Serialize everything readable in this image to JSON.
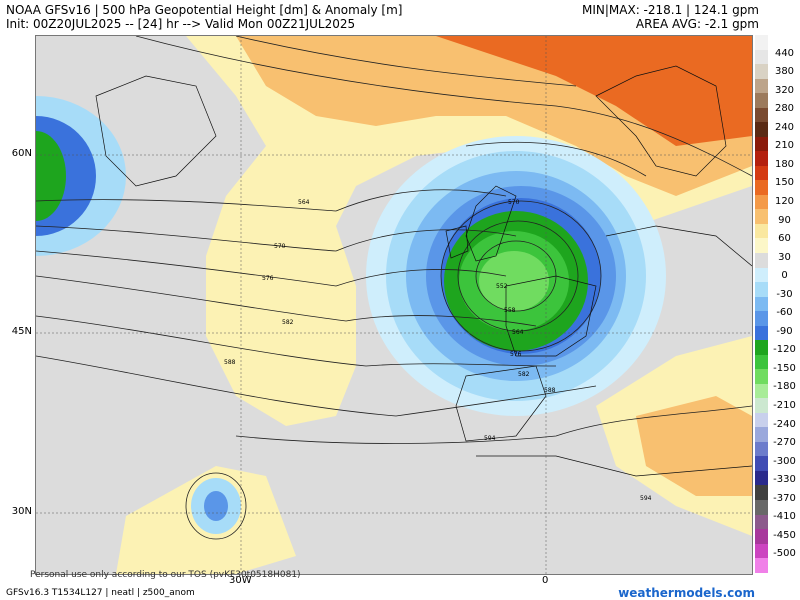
{
  "header": {
    "line1": "NOAA GFSv16 | 500 hPa Geopotential Height [dm] & Anomaly [m]",
    "line2": "Init: 00Z20JUL2025 -- [24] hr --> Valid Mon 00Z21JUL2025",
    "minmax": "MIN|MAX: -218.1 | 124.1 gpm",
    "area_avg": "AREA AVG: -2.1 gpm"
  },
  "axes": {
    "lat_labels": [
      "60N",
      "45N",
      "30N"
    ],
    "lon_labels": [
      "30W",
      "0"
    ]
  },
  "colorbar": {
    "labels": [
      "440",
      "380",
      "320",
      "280",
      "240",
      "210",
      "180",
      "150",
      "120",
      "90",
      "60",
      "30",
      "0",
      "-30",
      "-60",
      "-90",
      "-120",
      "-150",
      "-180",
      "-210",
      "-240",
      "-270",
      "-300",
      "-330",
      "-370",
      "-410",
      "-450",
      "-500"
    ],
    "colors": [
      "#f2f2f2",
      "#e6e6e6",
      "#d9d2c4",
      "#bda48a",
      "#9c7a5c",
      "#7a4a30",
      "#5a2a14",
      "#8a1a0a",
      "#b4200e",
      "#d43a12",
      "#ea6a22",
      "#f49a48",
      "#f8c070",
      "#fae8a0",
      "#fcf7c8",
      "#dcdcdc",
      "#cfeefc",
      "#a7dcf8",
      "#7cbaf2",
      "#5a96e8",
      "#3a72dc",
      "#1ea51e",
      "#3cc43c",
      "#70dc60",
      "#a8ec98",
      "#cce8d0",
      "#c8d0ec",
      "#9aa8dc",
      "#6c7ccc",
      "#404cb4",
      "#2a2a8c",
      "#404040",
      "#686868",
      "#8c5a8c",
      "#a8389c",
      "#cc44c0",
      "#f080e8"
    ]
  },
  "contour_labels": [
    "564",
    "570",
    "576",
    "582",
    "588",
    "552",
    "558",
    "564",
    "570",
    "576",
    "582",
    "588",
    "594",
    "594"
  ],
  "footer": {
    "tos": "Personal use only according to our TOS (pvKF30t0518H081)",
    "model": "GFSv16.3 T1534L127 | neatl | z500_anom",
    "site": "weathermodels.com"
  },
  "legend_colors": {
    "neutral": "#dcdcdc",
    "positive_light": "#fcf2b4",
    "positive_mid": "#f8c070",
    "positive_strong": "#ea6a22",
    "negative_light": "#a7dcf8",
    "negative_mid": "#3a72dc",
    "negative_strong": "#1ea51e"
  }
}
